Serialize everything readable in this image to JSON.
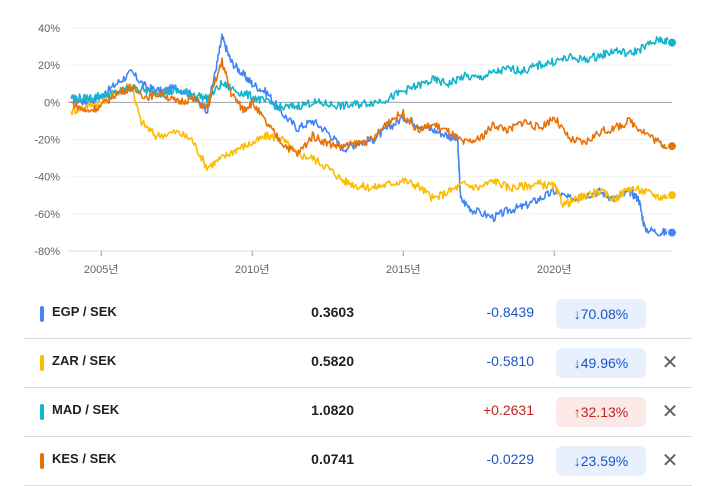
{
  "chart_data": {
    "type": "line",
    "yticks": [
      "40%",
      "20%",
      "0%",
      "-20%",
      "-40%",
      "-60%",
      "-80%"
    ],
    "ytick_values": [
      40,
      20,
      0,
      -20,
      -40,
      -60,
      -80
    ],
    "xticks": [
      "2005년",
      "2010년",
      "2015년",
      "2020년"
    ],
    "xtick_values": [
      2005,
      2010,
      2015,
      2020
    ],
    "xlim": [
      2003.9,
      2023.9
    ],
    "ylim": [
      -80,
      40
    ],
    "series": [
      {
        "name": "EGP / SEK",
        "color": "#4285f4",
        "points": [
          [
            2004.0,
            2
          ],
          [
            2004.5,
            0
          ],
          [
            2005.0,
            3
          ],
          [
            2005.5,
            10
          ],
          [
            2006.0,
            16
          ],
          [
            2006.5,
            8
          ],
          [
            2007.0,
            6
          ],
          [
            2007.5,
            8
          ],
          [
            2008.0,
            4
          ],
          [
            2008.5,
            -5
          ],
          [
            2008.8,
            18
          ],
          [
            2009.0,
            35
          ],
          [
            2009.3,
            22
          ],
          [
            2009.7,
            15
          ],
          [
            2010.0,
            10
          ],
          [
            2010.5,
            5
          ],
          [
            2011.0,
            -6
          ],
          [
            2011.5,
            -14
          ],
          [
            2012.0,
            -10
          ],
          [
            2012.5,
            -16
          ],
          [
            2013.0,
            -25
          ],
          [
            2013.5,
            -22
          ],
          [
            2014.0,
            -20
          ],
          [
            2014.5,
            -14
          ],
          [
            2015.0,
            -8
          ],
          [
            2015.5,
            -12
          ],
          [
            2016.0,
            -15
          ],
          [
            2016.5,
            -18
          ],
          [
            2016.8,
            -20
          ],
          [
            2016.9,
            -52
          ],
          [
            2017.3,
            -58
          ],
          [
            2018.0,
            -62
          ],
          [
            2018.5,
            -58
          ],
          [
            2019.0,
            -56
          ],
          [
            2019.5,
            -52
          ],
          [
            2020.0,
            -48
          ],
          [
            2020.5,
            -52
          ],
          [
            2021.0,
            -50
          ],
          [
            2021.5,
            -48
          ],
          [
            2022.0,
            -52
          ],
          [
            2022.5,
            -48
          ],
          [
            2022.8,
            -52
          ],
          [
            2023.0,
            -68
          ],
          [
            2023.5,
            -70
          ],
          [
            2023.9,
            -70
          ]
        ],
        "end_value": -70.08
      },
      {
        "name": "ZAR / SEK",
        "color": "#fbbc04",
        "points": [
          [
            2004.0,
            -5
          ],
          [
            2004.5,
            -2
          ],
          [
            2005.0,
            0
          ],
          [
            2005.5,
            5
          ],
          [
            2006.0,
            10
          ],
          [
            2006.3,
            -10
          ],
          [
            2006.8,
            -18
          ],
          [
            2007.5,
            -16
          ],
          [
            2008.0,
            -20
          ],
          [
            2008.5,
            -35
          ],
          [
            2009.0,
            -30
          ],
          [
            2009.5,
            -25
          ],
          [
            2010.0,
            -22
          ],
          [
            2010.5,
            -18
          ],
          [
            2011.0,
            -20
          ],
          [
            2011.5,
            -28
          ],
          [
            2012.0,
            -30
          ],
          [
            2012.5,
            -35
          ],
          [
            2013.0,
            -42
          ],
          [
            2013.5,
            -45
          ],
          [
            2014.0,
            -46
          ],
          [
            2014.5,
            -44
          ],
          [
            2015.0,
            -42
          ],
          [
            2015.5,
            -45
          ],
          [
            2016.0,
            -52
          ],
          [
            2016.5,
            -48
          ],
          [
            2017.0,
            -44
          ],
          [
            2017.5,
            -46
          ],
          [
            2018.0,
            -42
          ],
          [
            2018.5,
            -46
          ],
          [
            2019.0,
            -45
          ],
          [
            2019.5,
            -44
          ],
          [
            2020.0,
            -45
          ],
          [
            2020.3,
            -55
          ],
          [
            2020.8,
            -52
          ],
          [
            2021.0,
            -50
          ],
          [
            2021.5,
            -48
          ],
          [
            2022.0,
            -52
          ],
          [
            2022.5,
            -46
          ],
          [
            2023.0,
            -48
          ],
          [
            2023.5,
            -51
          ],
          [
            2023.9,
            -50
          ]
        ],
        "end_value": -49.96
      },
      {
        "name": "MAD / SEK",
        "color": "#12b5cb",
        "points": [
          [
            2004.0,
            3
          ],
          [
            2004.5,
            2
          ],
          [
            2005.0,
            4
          ],
          [
            2005.5,
            5
          ],
          [
            2006.0,
            8
          ],
          [
            2006.5,
            6
          ],
          [
            2007.0,
            5
          ],
          [
            2007.5,
            6
          ],
          [
            2008.0,
            5
          ],
          [
            2008.5,
            2
          ],
          [
            2009.0,
            10
          ],
          [
            2009.5,
            6
          ],
          [
            2010.0,
            3
          ],
          [
            2010.5,
            0
          ],
          [
            2011.0,
            -3
          ],
          [
            2011.5,
            -2
          ],
          [
            2012.0,
            0
          ],
          [
            2012.5,
            -1
          ],
          [
            2013.0,
            -2
          ],
          [
            2013.5,
            -1
          ],
          [
            2014.0,
            0
          ],
          [
            2014.5,
            2
          ],
          [
            2015.0,
            6
          ],
          [
            2015.5,
            9
          ],
          [
            2016.0,
            12
          ],
          [
            2016.5,
            10
          ],
          [
            2017.0,
            14
          ],
          [
            2017.5,
            13
          ],
          [
            2018.0,
            16
          ],
          [
            2018.5,
            18
          ],
          [
            2019.0,
            17
          ],
          [
            2019.5,
            20
          ],
          [
            2020.0,
            22
          ],
          [
            2020.5,
            24
          ],
          [
            2021.0,
            23
          ],
          [
            2021.5,
            25
          ],
          [
            2022.0,
            28
          ],
          [
            2022.5,
            26
          ],
          [
            2023.0,
            30
          ],
          [
            2023.5,
            34
          ],
          [
            2023.9,
            32
          ]
        ],
        "end_value": 32.13
      },
      {
        "name": "KES / SEK",
        "color": "#e8710a",
        "points": [
          [
            2004.0,
            0
          ],
          [
            2004.5,
            -5
          ],
          [
            2005.0,
            -2
          ],
          [
            2005.5,
            5
          ],
          [
            2006.0,
            8
          ],
          [
            2006.5,
            3
          ],
          [
            2007.0,
            5
          ],
          [
            2007.5,
            0
          ],
          [
            2008.0,
            2
          ],
          [
            2008.5,
            -3
          ],
          [
            2009.0,
            22
          ],
          [
            2009.3,
            5
          ],
          [
            2009.7,
            -4
          ],
          [
            2010.0,
            0
          ],
          [
            2010.5,
            -12
          ],
          [
            2011.0,
            -22
          ],
          [
            2011.5,
            -28
          ],
          [
            2012.0,
            -18
          ],
          [
            2012.5,
            -22
          ],
          [
            2013.0,
            -24
          ],
          [
            2013.5,
            -22
          ],
          [
            2014.0,
            -20
          ],
          [
            2014.5,
            -10
          ],
          [
            2015.0,
            -6
          ],
          [
            2015.5,
            -15
          ],
          [
            2016.0,
            -12
          ],
          [
            2016.5,
            -16
          ],
          [
            2017.0,
            -22
          ],
          [
            2017.5,
            -20
          ],
          [
            2018.0,
            -12
          ],
          [
            2018.5,
            -15
          ],
          [
            2019.0,
            -10
          ],
          [
            2019.5,
            -14
          ],
          [
            2020.0,
            -8
          ],
          [
            2020.5,
            -20
          ],
          [
            2021.0,
            -22
          ],
          [
            2021.5,
            -16
          ],
          [
            2022.0,
            -14
          ],
          [
            2022.5,
            -10
          ],
          [
            2023.0,
            -16
          ],
          [
            2023.5,
            -22
          ],
          [
            2023.9,
            -24
          ]
        ],
        "end_value": -23.59
      }
    ]
  },
  "rows": [
    {
      "pair": "EGP / SEK",
      "color": "#4285f4",
      "price": "0.3603",
      "change": "-0.8439",
      "change_dir": "neg",
      "pct": "↓70.08%",
      "pct_dir": "down",
      "removable": false
    },
    {
      "pair": "ZAR / SEK",
      "color": "#fbbc04",
      "price": "0.5820",
      "change": "-0.5810",
      "change_dir": "neg",
      "pct": "↓49.96%",
      "pct_dir": "down",
      "removable": true
    },
    {
      "pair": "MAD / SEK",
      "color": "#12b5cb",
      "price": "1.0820",
      "change": "+0.2631",
      "change_dir": "pos",
      "pct": "↑32.13%",
      "pct_dir": "up",
      "removable": true
    },
    {
      "pair": "KES / SEK",
      "color": "#e8710a",
      "price": "0.0741",
      "change": "-0.0229",
      "change_dir": "neg",
      "pct": "↓23.59%",
      "pct_dir": "down",
      "removable": true
    }
  ],
  "remove_icon": "close-icon"
}
